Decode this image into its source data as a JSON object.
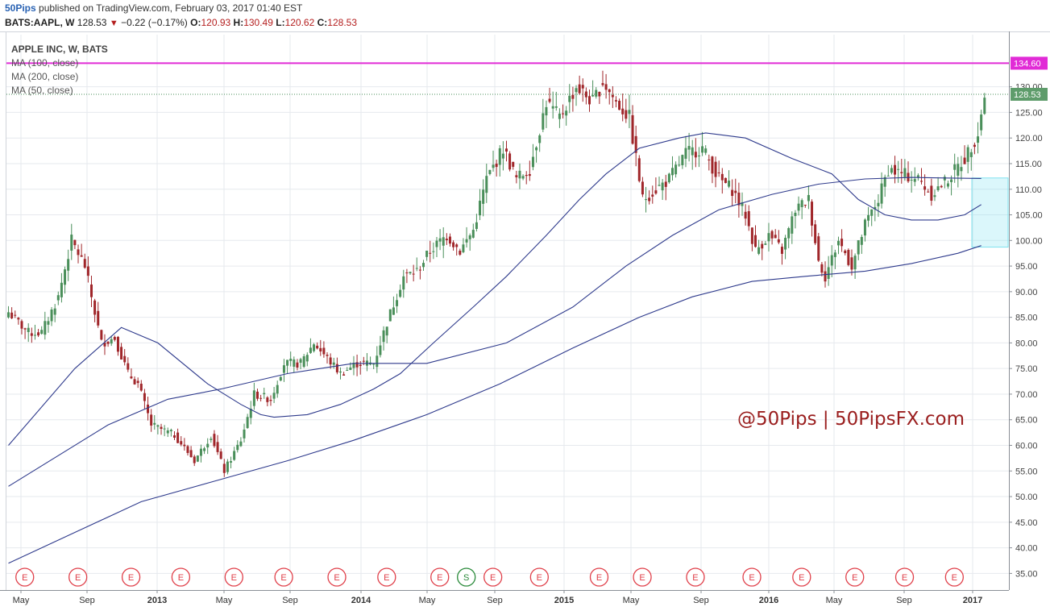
{
  "header": {
    "author": "50Pips",
    "published_text": "published on TradingView.com, February 03, 2017 01:40 EST",
    "symbol": "BATS:AAPL, W",
    "last": "128.53",
    "change": "−0.22 (−0.17%)",
    "open_label": "O:",
    "open": "120.93",
    "high_label": "H:",
    "high": "130.49",
    "low_label": "L:",
    "low": "120.62",
    "close_label": "C:",
    "close": "128.53"
  },
  "legend": {
    "title": "APPLE INC, W, BATS",
    "ma1": "MA (100, close)",
    "ma2": "MA (200, close)",
    "ma3": "MA (50, close)"
  },
  "watermark": "@50Pips | 50PipsFX.com",
  "colors": {
    "up": "#4a8f5a",
    "down": "#a0262a",
    "ma": "#2e3a8c",
    "level": "#e12bd6",
    "box": "#7fe3ef",
    "event_e": "#e0404a",
    "event_s": "#2a8a3a",
    "grid": "#e6e9ee"
  },
  "chart_data": {
    "type": "candlestick",
    "symbol": "BATS:AAPL",
    "timeframe": "W",
    "x_tick_labels": [
      "May",
      "Sep",
      "2013",
      "May",
      "Sep",
      "2014",
      "May",
      "Sep",
      "2015",
      "May",
      "Sep",
      "2016",
      "May",
      "Sep",
      "2017"
    ],
    "y_tick_labels": [
      35,
      40,
      45,
      50,
      55,
      60,
      65,
      70,
      75,
      80,
      85,
      90,
      95,
      100,
      105,
      110,
      115,
      120,
      125,
      130
    ],
    "ylim": [
      32,
      138
    ],
    "horizontal_level": 134.6,
    "horizontal_level_label": "134.60",
    "last_price_label": "128.53",
    "last_price": 128.53,
    "box_range": [
      98.7,
      112.2
    ],
    "close_anchors": [
      [
        0,
        86
      ],
      [
        6,
        82
      ],
      [
        10,
        82
      ],
      [
        15,
        89
      ],
      [
        19,
        100
      ],
      [
        23,
        95
      ],
      [
        28,
        80
      ],
      [
        32,
        81
      ],
      [
        36,
        74
      ],
      [
        39,
        72
      ],
      [
        43,
        64
      ],
      [
        50,
        62
      ],
      [
        56,
        57
      ],
      [
        61,
        62
      ],
      [
        65,
        55
      ],
      [
        70,
        61
      ],
      [
        74,
        70
      ],
      [
        79,
        69
      ],
      [
        83,
        76
      ],
      [
        88,
        76
      ],
      [
        92,
        80
      ],
      [
        96,
        77
      ],
      [
        100,
        74
      ],
      [
        105,
        76
      ],
      [
        110,
        76
      ],
      [
        114,
        84
      ],
      [
        119,
        93
      ],
      [
        123,
        94
      ],
      [
        127,
        98
      ],
      [
        132,
        101
      ],
      [
        136,
        98
      ],
      [
        140,
        102
      ],
      [
        144,
        112
      ],
      [
        149,
        118
      ],
      [
        153,
        112
      ],
      [
        157,
        114
      ],
      [
        162,
        127
      ],
      [
        166,
        124
      ],
      [
        171,
        130
      ],
      [
        176,
        127
      ],
      [
        179,
        131
      ],
      [
        183,
        127
      ],
      [
        187,
        124
      ],
      [
        191,
        108
      ],
      [
        195,
        110
      ],
      [
        199,
        112
      ],
      [
        204,
        117
      ],
      [
        209,
        118
      ],
      [
        214,
        112
      ],
      [
        218,
        110
      ],
      [
        222,
        105
      ],
      [
        225,
        98
      ],
      [
        229,
        101
      ],
      [
        233,
        98
      ],
      [
        237,
        106
      ],
      [
        241,
        108
      ],
      [
        244,
        96
      ],
      [
        246,
        93
      ],
      [
        250,
        100
      ],
      [
        254,
        95
      ],
      [
        258,
        103
      ],
      [
        262,
        108
      ],
      [
        265,
        114
      ],
      [
        269,
        113
      ],
      [
        274,
        112
      ],
      [
        278,
        109
      ],
      [
        283,
        112
      ],
      [
        288,
        116
      ],
      [
        292,
        121
      ],
      [
        294,
        128.5
      ]
    ],
    "ma50": [
      [
        0,
        60
      ],
      [
        20,
        75
      ],
      [
        34,
        83
      ],
      [
        45,
        80
      ],
      [
        60,
        72
      ],
      [
        70,
        68
      ],
      [
        76,
        66
      ],
      [
        80,
        65.5
      ],
      [
        90,
        66
      ],
      [
        100,
        68
      ],
      [
        110,
        71
      ],
      [
        118,
        74
      ],
      [
        128,
        80
      ],
      [
        140,
        87
      ],
      [
        150,
        93
      ],
      [
        162,
        101
      ],
      [
        172,
        108
      ],
      [
        180,
        113
      ],
      [
        190,
        118
      ],
      [
        202,
        120
      ],
      [
        210,
        121
      ],
      [
        222,
        120
      ],
      [
        236,
        116
      ],
      [
        248,
        113
      ],
      [
        256,
        108
      ],
      [
        264,
        105
      ],
      [
        272,
        104
      ],
      [
        280,
        104
      ],
      [
        288,
        105
      ],
      [
        293,
        107
      ]
    ],
    "ma100": [
      [
        0,
        52
      ],
      [
        30,
        64
      ],
      [
        48,
        69
      ],
      [
        64,
        71
      ],
      [
        84,
        74
      ],
      [
        104,
        76
      ],
      [
        126,
        76
      ],
      [
        150,
        80
      ],
      [
        170,
        87
      ],
      [
        186,
        95
      ],
      [
        200,
        101
      ],
      [
        214,
        106
      ],
      [
        230,
        109
      ],
      [
        244,
        111
      ],
      [
        258,
        112
      ],
      [
        272,
        112.3
      ],
      [
        282,
        112.2
      ],
      [
        293,
        112.1
      ]
    ],
    "ma200": [
      [
        0,
        37
      ],
      [
        20,
        43
      ],
      [
        40,
        49
      ],
      [
        62,
        53
      ],
      [
        84,
        57
      ],
      [
        104,
        61
      ],
      [
        126,
        66
      ],
      [
        148,
        72
      ],
      [
        170,
        79
      ],
      [
        190,
        85
      ],
      [
        206,
        89
      ],
      [
        224,
        92
      ],
      [
        240,
        93
      ],
      [
        258,
        94
      ],
      [
        272,
        95.5
      ],
      [
        286,
        97.5
      ],
      [
        293,
        99
      ]
    ],
    "events": [
      {
        "bar": 2,
        "label": "E"
      },
      {
        "bar": 18,
        "label": "E"
      },
      {
        "bar": 34,
        "label": "E"
      },
      {
        "bar": 49,
        "label": "E"
      },
      {
        "bar": 65,
        "label": "E"
      },
      {
        "bar": 80,
        "label": "E"
      },
      {
        "bar": 96,
        "label": "E"
      },
      {
        "bar": 111,
        "label": "E"
      },
      {
        "bar": 127,
        "label": "E"
      },
      {
        "bar": 135,
        "label": "S"
      },
      {
        "bar": 143,
        "label": "E"
      },
      {
        "bar": 157,
        "label": "E"
      },
      {
        "bar": 175,
        "label": "E"
      },
      {
        "bar": 188,
        "label": "E"
      },
      {
        "bar": 204,
        "label": "E"
      },
      {
        "bar": 221,
        "label": "E"
      },
      {
        "bar": 236,
        "label": "E"
      },
      {
        "bar": 252,
        "label": "E"
      },
      {
        "bar": 267,
        "label": "E"
      },
      {
        "bar": 282,
        "label": "E"
      }
    ]
  }
}
